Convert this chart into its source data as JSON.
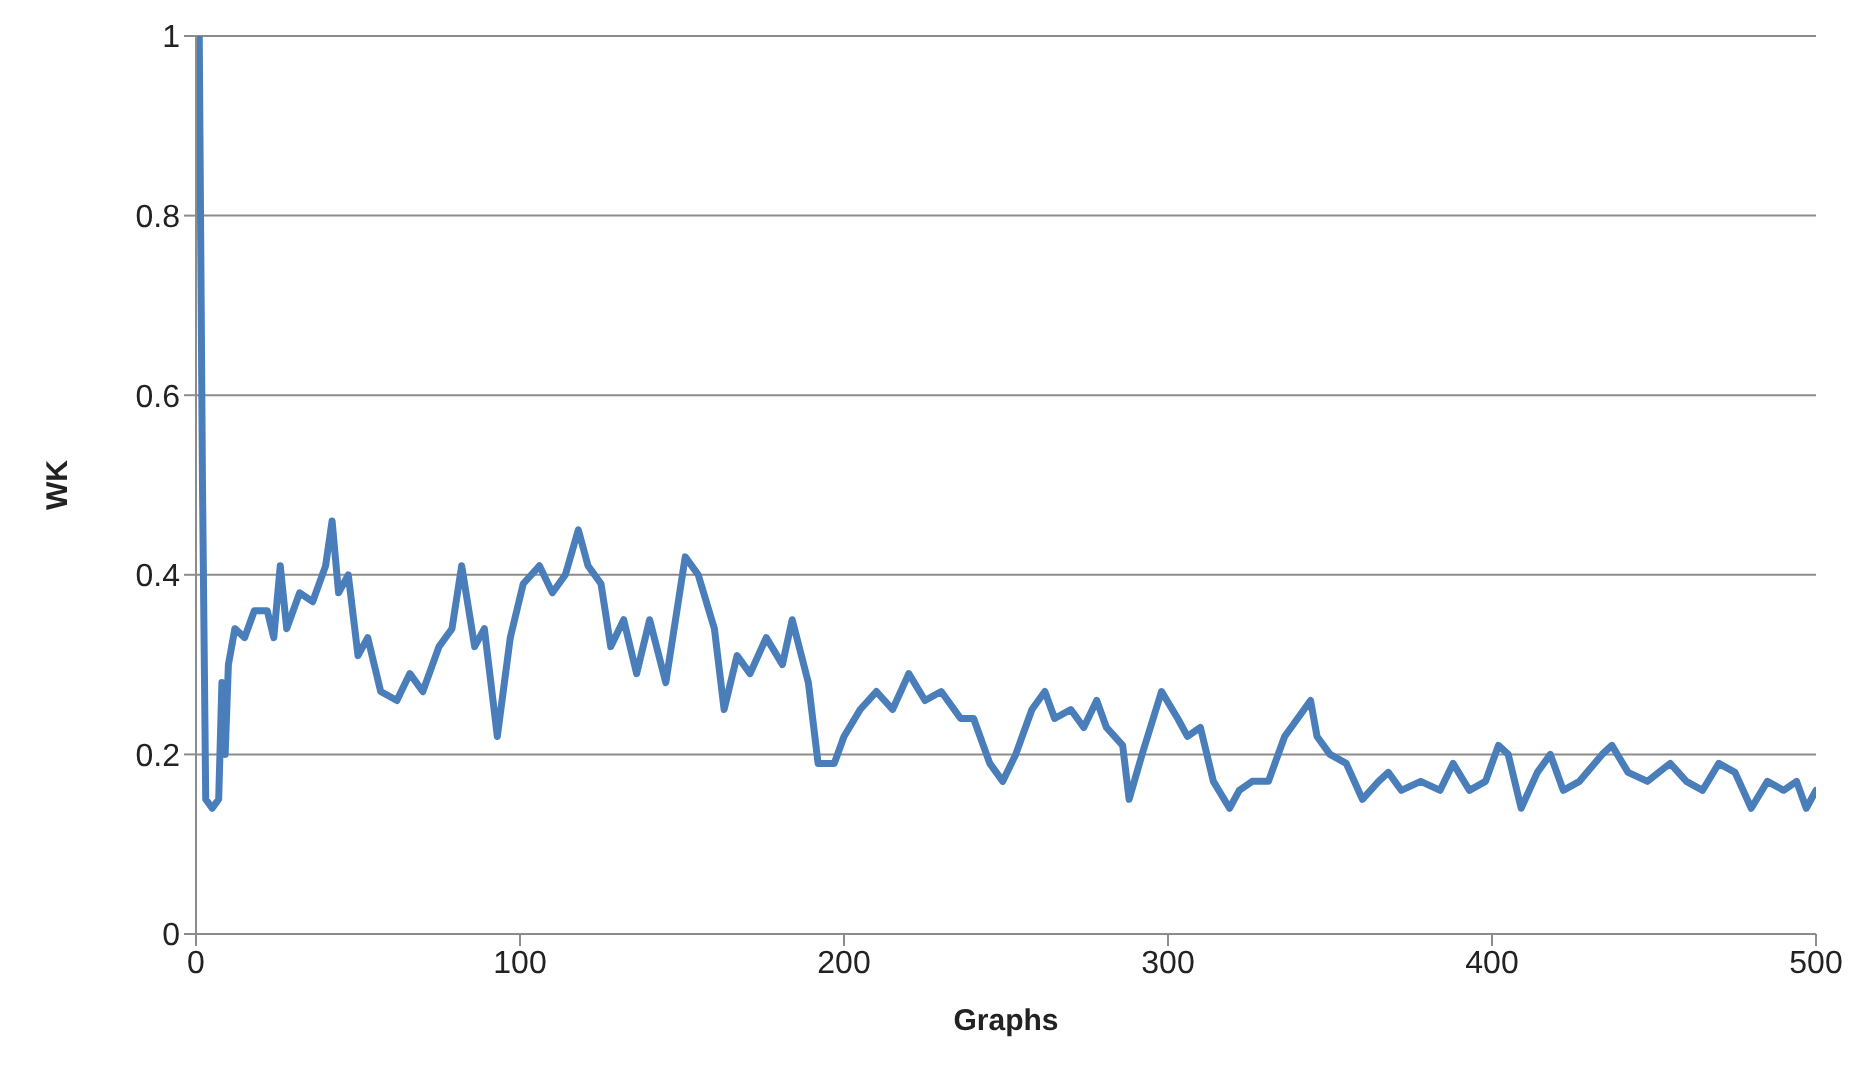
{
  "chart_data": {
    "type": "line",
    "xlabel": "Graphs",
    "ylabel": "WK",
    "grid": "y",
    "legend": false,
    "marker": "none",
    "line_style": "solid",
    "xlim": [
      0,
      500
    ],
    "xticks": [
      0,
      100,
      200,
      300,
      400,
      500
    ],
    "ylim": [
      0,
      1
    ],
    "yticks": [
      0,
      0.2,
      0.4,
      0.6,
      0.8,
      1
    ],
    "x": [
      0,
      1,
      2,
      3,
      5,
      7,
      8,
      9,
      10,
      12,
      15,
      18,
      22,
      24,
      26,
      28,
      32,
      36,
      40,
      42,
      44,
      47,
      50,
      53,
      57,
      62,
      66,
      70,
      75,
      79,
      82,
      86,
      89,
      93,
      97,
      101,
      106,
      110,
      114,
      118,
      121,
      125,
      128,
      132,
      136,
      140,
      145,
      151,
      155,
      160,
      163,
      167,
      171,
      176,
      181,
      184,
      189,
      192,
      197,
      200,
      205,
      210,
      215,
      220,
      225,
      230,
      236,
      240,
      245,
      249,
      253,
      258,
      262,
      265,
      270,
      274,
      278,
      281,
      286,
      288,
      292,
      298,
      303,
      306,
      310,
      314,
      319,
      322,
      326,
      331,
      336,
      340,
      344,
      346,
      350,
      355,
      360,
      365,
      368,
      372,
      378,
      384,
      388,
      393,
      398,
      402,
      405,
      409,
      414,
      418,
      422,
      427,
      434,
      437,
      442,
      448,
      455,
      460,
      465,
      470,
      475,
      480,
      485,
      490,
      494,
      497,
      500
    ],
    "series": [
      {
        "color": "#4a7ebb",
        "values": [
          1,
          1,
          0.5,
          0.15,
          0.14,
          0.15,
          0.28,
          0.2,
          0.3,
          0.34,
          0.33,
          0.36,
          0.36,
          0.33,
          0.41,
          0.34,
          0.38,
          0.37,
          0.41,
          0.46,
          0.38,
          0.4,
          0.31,
          0.33,
          0.27,
          0.26,
          0.29,
          0.27,
          0.32,
          0.34,
          0.41,
          0.32,
          0.34,
          0.22,
          0.33,
          0.39,
          0.41,
          0.38,
          0.4,
          0.45,
          0.41,
          0.39,
          0.32,
          0.35,
          0.29,
          0.35,
          0.28,
          0.42,
          0.4,
          0.34,
          0.25,
          0.31,
          0.29,
          0.33,
          0.3,
          0.35,
          0.28,
          0.19,
          0.19,
          0.22,
          0.25,
          0.27,
          0.25,
          0.29,
          0.26,
          0.27,
          0.24,
          0.24,
          0.19,
          0.17,
          0.2,
          0.25,
          0.27,
          0.24,
          0.25,
          0.23,
          0.26,
          0.23,
          0.21,
          0.15,
          0.2,
          0.27,
          0.24,
          0.22,
          0.23,
          0.17,
          0.14,
          0.16,
          0.17,
          0.17,
          0.22,
          0.24,
          0.26,
          0.22,
          0.2,
          0.19,
          0.15,
          0.17,
          0.18,
          0.16,
          0.17,
          0.16,
          0.19,
          0.16,
          0.17,
          0.21,
          0.2,
          0.14,
          0.18,
          0.2,
          0.16,
          0.17,
          0.2,
          0.21,
          0.18,
          0.17,
          0.19,
          0.17,
          0.16,
          0.19,
          0.18,
          0.14,
          0.17,
          0.16,
          0.17,
          0.14,
          0.16
        ]
      }
    ]
  }
}
